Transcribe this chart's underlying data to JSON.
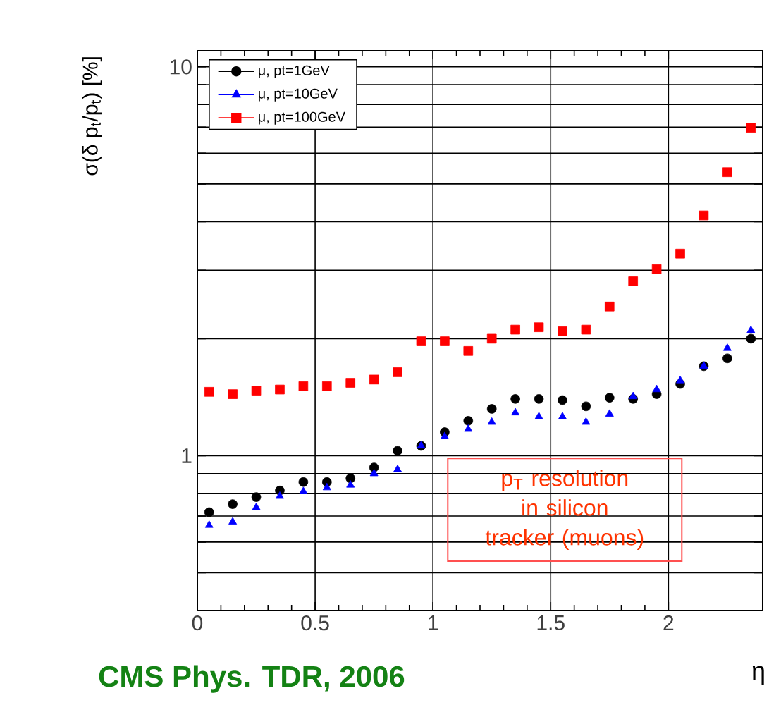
{
  "chart_data": {
    "type": "scatter",
    "xlabel": "η",
    "ylabel": "σ(δ p$_{t}$/p$_{t}$) [%]",
    "x": [
      0.05,
      0.15,
      0.25,
      0.35,
      0.45,
      0.55,
      0.65,
      0.75,
      0.85,
      0.95,
      1.05,
      1.15,
      1.25,
      1.35,
      1.45,
      1.55,
      1.65,
      1.75,
      1.85,
      1.95,
      2.05,
      2.15,
      2.25,
      2.35
    ],
    "series": [
      {
        "name": "μ, pt=1GeV",
        "color": "#000000",
        "marker": "circle",
        "values": [
          0.716,
          0.751,
          0.783,
          0.814,
          0.856,
          0.856,
          0.875,
          0.933,
          1.03,
          1.06,
          1.15,
          1.23,
          1.32,
          1.4,
          1.4,
          1.39,
          1.34,
          1.41,
          1.4,
          1.44,
          1.53,
          1.7,
          1.78,
          2.0
        ]
      },
      {
        "name": "μ, pt=10GeV",
        "color": "#0000ff",
        "marker": "triangle",
        "values": [
          0.663,
          0.676,
          0.736,
          0.787,
          0.809,
          0.828,
          0.841,
          0.9,
          0.922,
          1.06,
          1.12,
          1.17,
          1.22,
          1.29,
          1.26,
          1.26,
          1.22,
          1.28,
          1.42,
          1.48,
          1.56,
          1.7,
          1.89,
          2.1
        ]
      },
      {
        "name": "μ, pt=100GeV",
        "color": "#ff0000",
        "marker": "square",
        "values": [
          1.46,
          1.44,
          1.47,
          1.48,
          1.51,
          1.51,
          1.54,
          1.57,
          1.64,
          1.97,
          1.97,
          1.86,
          2.0,
          2.11,
          2.14,
          2.09,
          2.11,
          2.42,
          2.81,
          3.02,
          3.31,
          4.15,
          5.36,
          6.97
        ]
      }
    ],
    "xlim": [
      0,
      2.4
    ],
    "xticks": [
      0,
      0.5,
      1,
      1.5,
      2
    ],
    "ylim": [
      0.4,
      11
    ],
    "log": "y",
    "yticks": [
      {
        "value": 0.4,
        "label": null
      },
      {
        "value": 0.5,
        "label": null
      },
      {
        "value": 0.6,
        "label": null
      },
      {
        "value": 0.7,
        "label": null
      },
      {
        "value": 0.8,
        "label": null
      },
      {
        "value": 0.9,
        "label": null
      },
      1,
      {
        "value": 2,
        "label": null
      },
      {
        "value": 3,
        "label": null
      },
      {
        "value": 4,
        "label": null
      },
      {
        "value": 5,
        "label": null
      },
      {
        "value": 6,
        "label": null
      },
      {
        "value": 7,
        "label": null
      },
      {
        "value": 8,
        "label": null
      },
      {
        "value": 9,
        "label": null
      },
      10
    ],
    "grid": true,
    "legend": "top left",
    "annotations": [
      "p$_{T}$ resolution in silicon tracker (muons)",
      "CMS Phys. TDR, 2006"
    ]
  }
}
